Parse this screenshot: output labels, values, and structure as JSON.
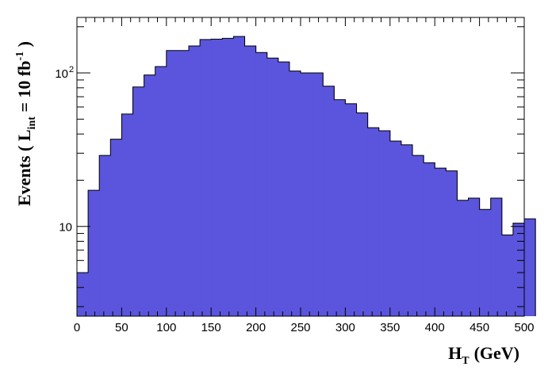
{
  "chart_data": {
    "type": "bar",
    "ylog": true,
    "color": "#5a55dc",
    "edge_color": "#000000",
    "xlim": [
      0,
      500
    ],
    "ylim": [
      2.6,
      230
    ],
    "xlabel": {
      "main": "H",
      "sub": "T",
      "rest": "(GeV)"
    },
    "ylabel": {
      "pre": "Events  ( L",
      "sub": "int",
      "mid": " = 10 fb",
      "sup": "-1",
      "post": " )"
    },
    "x_ticks": [
      "0",
      "50",
      "100",
      "150",
      "200",
      "250",
      "300",
      "350",
      "400",
      "450",
      "500"
    ],
    "y_ticks": [
      {
        "value": 10,
        "base": "10",
        "exp": ""
      },
      {
        "value": 100,
        "base": "10",
        "exp": "2"
      }
    ],
    "bin_width": 12.5,
    "values": [
      5.0,
      17.2,
      29.0,
      37.0,
      54.0,
      81.0,
      97.0,
      110.0,
      140.0,
      140.0,
      150.0,
      165.0,
      166.0,
      168.0,
      173.0,
      150.0,
      136.0,
      125.0,
      118.0,
      103.0,
      100.0,
      100.0,
      82.0,
      67.0,
      63.0,
      55.0,
      44.0,
      42.0,
      36.0,
      34.0,
      29.0,
      26.0,
      24.0,
      23.0,
      14.8,
      15.3,
      12.9,
      15.3,
      8.8,
      10.5,
      11.2
    ]
  }
}
